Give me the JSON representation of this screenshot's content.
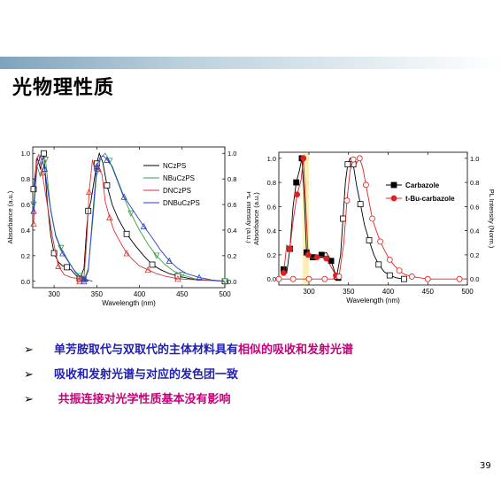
{
  "slide": {
    "title": "光物理性质",
    "page_number": "39",
    "accent_color": "#7fa3bd"
  },
  "bullets": [
    {
      "marker": "➢",
      "parts": [
        {
          "text": "单芳胺取代与双取代的主体材料具有",
          "color": "#1f1fb0"
        },
        {
          "text": "相似的吸收和发射光谱",
          "color": "#c8007a"
        }
      ]
    },
    {
      "marker": "➢",
      "parts": [
        {
          "text": "吸收和发射光谱与对应的发色团一致",
          "color": "#1f1fb0"
        }
      ]
    },
    {
      "marker": "➢",
      "parts": [
        {
          "text": " 共振连接对光学性质基本没有影响",
          "color": "#c8007a"
        }
      ]
    }
  ],
  "chart_data": [
    {
      "type": "line",
      "xlabel": "Wavelength (nm)",
      "ylabel": "Absorbance (a.u.)",
      "y2label": "PL Intensity (a.u.)",
      "xlim": [
        275,
        500
      ],
      "ylim": [
        -0.05,
        1.05
      ],
      "xticks": [
        300,
        350,
        400,
        450,
        500
      ],
      "yticks": [
        0.0,
        0.2,
        0.4,
        0.6,
        0.8,
        1.0
      ],
      "yticklabels": [
        "0.0",
        "0.2",
        "0.4",
        "0.6",
        "0.8",
        "1.0"
      ],
      "legend_position": "top-right",
      "series": [
        {
          "name": "NCzPS",
          "color": "#000000",
          "marker": "square",
          "abs": [
            [
              276,
              0.72
            ],
            [
              280,
              0.97
            ],
            [
              284,
              0.88
            ],
            [
              288,
              1.0
            ],
            [
              292,
              0.62
            ],
            [
              296,
              0.36
            ],
            [
              300,
              0.22
            ],
            [
              305,
              0.15
            ],
            [
              310,
              0.12
            ],
            [
              315,
              0.11
            ],
            [
              320,
              0.09
            ],
            [
              325,
              0.05
            ],
            [
              330,
              0.02
            ],
            [
              335,
              0.01
            ],
            [
              340,
              0.0
            ]
          ],
          "pl": [
            [
              330,
              0.02
            ],
            [
              335,
              0.1
            ],
            [
              338,
              0.4
            ],
            [
              340,
              0.55
            ],
            [
              343,
              0.62
            ],
            [
              346,
              0.75
            ],
            [
              350,
              0.92
            ],
            [
              353,
              1.0
            ],
            [
              357,
              0.93
            ],
            [
              362,
              0.75
            ],
            [
              368,
              0.6
            ],
            [
              375,
              0.49
            ],
            [
              385,
              0.37
            ],
            [
              395,
              0.28
            ],
            [
              405,
              0.2
            ],
            [
              415,
              0.13
            ],
            [
              425,
              0.09
            ],
            [
              435,
              0.06
            ],
            [
              445,
              0.04
            ],
            [
              460,
              0.02
            ],
            [
              480,
              0.01
            ],
            [
              500,
              0.0
            ]
          ]
        },
        {
          "name": "NBuCzPS",
          "color": "#3aa048",
          "marker": "triangle-down",
          "abs": [
            [
              276,
              0.6
            ],
            [
              280,
              0.9
            ],
            [
              284,
              0.82
            ],
            [
              290,
              0.95
            ],
            [
              296,
              0.55
            ],
            [
              302,
              0.36
            ],
            [
              308,
              0.26
            ],
            [
              315,
              0.18
            ],
            [
              322,
              0.1
            ],
            [
              330,
              0.04
            ],
            [
              340,
              0.01
            ]
          ],
          "pl": [
            [
              335,
              0.01
            ],
            [
              340,
              0.1
            ],
            [
              345,
              0.45
            ],
            [
              350,
              0.85
            ],
            [
              355,
              0.97
            ],
            [
              360,
              1.0
            ],
            [
              365,
              0.94
            ],
            [
              372,
              0.82
            ],
            [
              380,
              0.68
            ],
            [
              390,
              0.53
            ],
            [
              400,
              0.4
            ],
            [
              410,
              0.29
            ],
            [
              420,
              0.2
            ],
            [
              430,
              0.13
            ],
            [
              440,
              0.08
            ],
            [
              450,
              0.05
            ],
            [
              465,
              0.02
            ],
            [
              480,
              0.01
            ],
            [
              500,
              0.0
            ]
          ]
        },
        {
          "name": "DNCzPS",
          "color": "#e03030",
          "marker": "triangle-up",
          "abs": [
            [
              276,
              0.45
            ],
            [
              279,
              0.95
            ],
            [
              282,
              0.99
            ],
            [
              286,
              0.85
            ],
            [
              292,
              0.6
            ],
            [
              298,
              0.35
            ],
            [
              305,
              0.12
            ],
            [
              312,
              0.05
            ],
            [
              320,
              0.03
            ],
            [
              330,
              0.02
            ],
            [
              340,
              0.01
            ]
          ],
          "pl": [
            [
              330,
              0.0
            ],
            [
              335,
              0.03
            ],
            [
              338,
              0.3
            ],
            [
              341,
              0.7
            ],
            [
              345,
              0.95
            ],
            [
              348,
              0.86
            ],
            [
              352,
              0.88
            ],
            [
              356,
              0.84
            ],
            [
              360,
              0.62
            ],
            [
              365,
              0.5
            ],
            [
              370,
              0.4
            ],
            [
              378,
              0.3
            ],
            [
              385,
              0.22
            ],
            [
              392,
              0.17
            ],
            [
              400,
              0.12
            ],
            [
              410,
              0.09
            ],
            [
              420,
              0.06
            ],
            [
              430,
              0.04
            ],
            [
              445,
              0.02
            ],
            [
              470,
              0.01
            ],
            [
              500,
              0.0
            ]
          ]
        },
        {
          "name": "DNBuCzPS",
          "color": "#2a3ccf",
          "marker": "triangle-up",
          "abs": [
            [
              276,
              0.55
            ],
            [
              280,
              0.9
            ],
            [
              284,
              0.98
            ],
            [
              289,
              0.88
            ],
            [
              295,
              0.6
            ],
            [
              302,
              0.35
            ],
            [
              310,
              0.22
            ],
            [
              318,
              0.14
            ],
            [
              326,
              0.06
            ],
            [
              335,
              0.02
            ],
            [
              345,
              0.0
            ]
          ],
          "pl": [
            [
              335,
              0.0
            ],
            [
              340,
              0.08
            ],
            [
              345,
              0.5
            ],
            [
              350,
              0.9
            ],
            [
              354,
              0.97
            ],
            [
              358,
              0.98
            ],
            [
              362,
              0.95
            ],
            [
              368,
              0.9
            ],
            [
              375,
              0.78
            ],
            [
              382,
              0.66
            ],
            [
              390,
              0.58
            ],
            [
              398,
              0.5
            ],
            [
              405,
              0.43
            ],
            [
              415,
              0.34
            ],
            [
              425,
              0.24
            ],
            [
              435,
              0.16
            ],
            [
              445,
              0.1
            ],
            [
              455,
              0.06
            ],
            [
              470,
              0.03
            ],
            [
              485,
              0.01
            ],
            [
              500,
              0.0
            ]
          ]
        }
      ]
    },
    {
      "type": "line",
      "xlabel": "Wavelength (nm)",
      "ylabel": "Absorbance (a.u.)",
      "y2label": "PL Intensity (Norm.)",
      "xlim": [
        262,
        500
      ],
      "ylim": [
        -0.05,
        1.05
      ],
      "xticks": [
        300,
        350,
        400,
        450,
        500
      ],
      "yticks": [
        0.0,
        0.2,
        0.4,
        0.6,
        0.8,
        1.0
      ],
      "yticklabels": [
        "0.0",
        "0.2",
        "0.4",
        "0.6",
        "0.8",
        "1.0"
      ],
      "legend_position": "top-right",
      "series": [
        {
          "name": "Carbazole",
          "color": "#000000",
          "marker": "square-filled",
          "pl_marker": "square-open",
          "abs": [
            [
              268,
              0.08
            ],
            [
              272,
              0.05
            ],
            [
              276,
              0.25
            ],
            [
              280,
              0.6
            ],
            [
              284,
              0.8
            ],
            [
              288,
              0.9
            ],
            [
              291,
              1.0
            ],
            [
              294,
              0.7
            ],
            [
              297,
              0.22
            ],
            [
              300,
              0.19
            ],
            [
              305,
              0.18
            ],
            [
              310,
              0.18
            ],
            [
              316,
              0.2
            ],
            [
              322,
              0.22
            ],
            [
              328,
              0.15
            ],
            [
              333,
              0.05
            ],
            [
              337,
              0.01
            ],
            [
              340,
              0.0
            ]
          ],
          "pl": [
            [
              335,
              0.02
            ],
            [
              340,
              0.2
            ],
            [
              343,
              0.5
            ],
            [
              346,
              0.8
            ],
            [
              349,
              0.95
            ],
            [
              352,
              1.0
            ],
            [
              356,
              0.95
            ],
            [
              360,
              0.78
            ],
            [
              365,
              0.62
            ],
            [
              370,
              0.45
            ],
            [
              376,
              0.32
            ],
            [
              382,
              0.2
            ],
            [
              388,
              0.12
            ],
            [
              395,
              0.06
            ],
            [
              402,
              0.03
            ],
            [
              410,
              0.01
            ],
            [
              420,
              0.0
            ]
          ]
        },
        {
          "name": "t-Bu-carbazole",
          "color": "#e02020",
          "marker": "circle-filled",
          "pl_marker": "circle-open",
          "abs": [
            [
              268,
              0.05
            ],
            [
              272,
              0.28
            ],
            [
              276,
              0.25
            ],
            [
              280,
              0.48
            ],
            [
              285,
              0.7
            ],
            [
              290,
              0.82
            ],
            [
              293,
              1.0
            ],
            [
              296,
              0.62
            ],
            [
              299,
              0.2
            ],
            [
              304,
              0.17
            ],
            [
              310,
              0.18
            ],
            [
              316,
              0.19
            ],
            [
              322,
              0.17
            ],
            [
              328,
              0.1
            ],
            [
              334,
              0.03
            ],
            [
              340,
              0.0
            ]
          ],
          "pl": [
            [
              262,
              0.0
            ],
            [
              270,
              0.0
            ],
            [
              280,
              0.0
            ],
            [
              290,
              0.0
            ],
            [
              300,
              0.0
            ],
            [
              310,
              0.0
            ],
            [
              320,
              0.0
            ],
            [
              330,
              0.0
            ],
            [
              338,
              0.02
            ],
            [
              344,
              0.3
            ],
            [
              348,
              0.65
            ],
            [
              352,
              0.9
            ],
            [
              356,
              0.99
            ],
            [
              360,
              0.96
            ],
            [
              364,
              1.0
            ],
            [
              368,
              0.92
            ],
            [
              372,
              0.78
            ],
            [
              376,
              0.64
            ],
            [
              380,
              0.5
            ],
            [
              385,
              0.4
            ],
            [
              390,
              0.31
            ],
            [
              396,
              0.23
            ],
            [
              402,
              0.16
            ],
            [
              408,
              0.11
            ],
            [
              414,
              0.07
            ],
            [
              420,
              0.04
            ],
            [
              430,
              0.02
            ],
            [
              440,
              0.01
            ],
            [
              450,
              0.0
            ],
            [
              470,
              0.0
            ],
            [
              490,
              0.0
            ],
            [
              500,
              0.0
            ]
          ]
        }
      ]
    }
  ]
}
